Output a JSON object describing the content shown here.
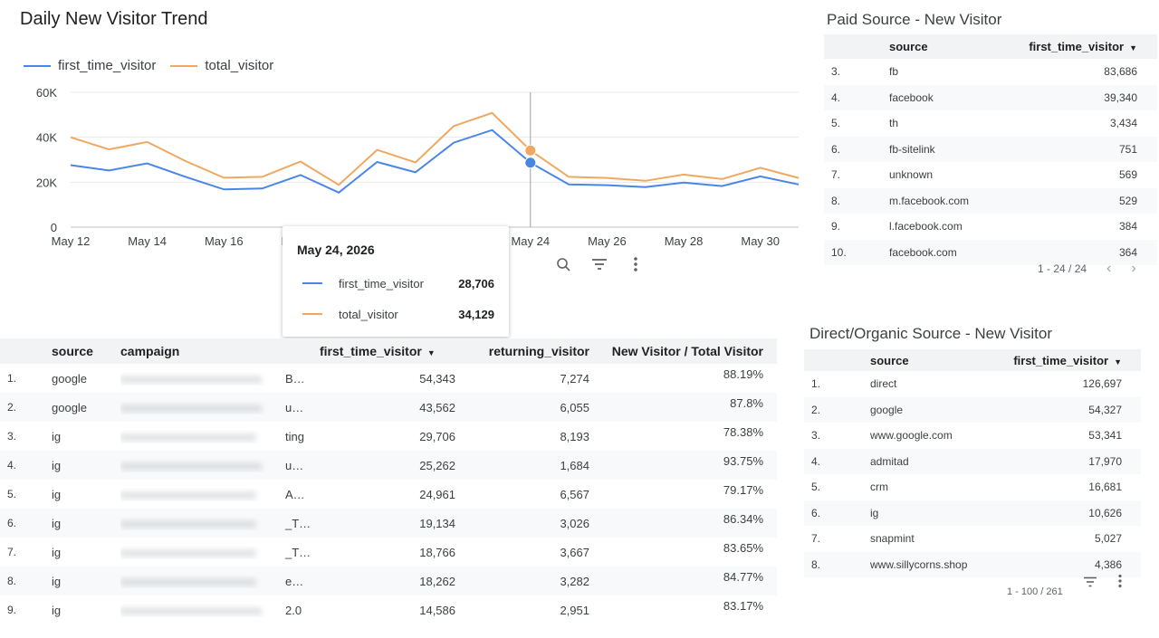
{
  "chart": {
    "title": "Daily New Visitor Trend",
    "legend": [
      {
        "name": "first_time_visitor",
        "color": "#4a86e8"
      },
      {
        "name": "total_visitor",
        "color": "#f0a860"
      }
    ],
    "tooltip": {
      "date": "May 24, 2026",
      "rows": [
        {
          "name": "first_time_visitor",
          "value": "28,706"
        },
        {
          "name": "total_visitor",
          "value": "34,129"
        }
      ]
    },
    "tools": [
      "zoom-icon",
      "filter-icon",
      "more-vert-icon"
    ]
  },
  "chart_data": {
    "type": "line",
    "title": "Daily New Visitor Trend",
    "x": [
      "May 12",
      "May 13",
      "May 14",
      "May 15",
      "May 16",
      "May 17",
      "May 18",
      "May 19",
      "May 20",
      "May 21",
      "May 22",
      "May 23",
      "May 24",
      "May 25",
      "May 26",
      "May 27",
      "May 28",
      "May 29",
      "May 30",
      "May 31"
    ],
    "x_tick_labels": [
      "May 12",
      "May 14",
      "May 16",
      "May 18",
      "May 20",
      "May 22",
      "May 24",
      "May 26",
      "May 28",
      "May 30"
    ],
    "y_tick_labels": [
      "0",
      "20K",
      "40K",
      "60K"
    ],
    "ylim": [
      0,
      60000
    ],
    "grid": true,
    "legend_position": "top-left",
    "highlight_index": 12,
    "series": [
      {
        "name": "first_time_visitor",
        "color": "#4a86e8",
        "values": [
          27600,
          25200,
          28400,
          22400,
          16800,
          17200,
          23200,
          15400,
          29000,
          24400,
          37600,
          43200,
          28706,
          19000,
          18700,
          17800,
          19800,
          18300,
          22600,
          19000
        ]
      },
      {
        "name": "total_visitor",
        "color": "#f0a860",
        "values": [
          40000,
          34600,
          37900,
          29400,
          22000,
          22400,
          29200,
          18800,
          34400,
          28800,
          45000,
          50800,
          34129,
          22400,
          21900,
          20600,
          23400,
          21400,
          26400,
          21900
        ]
      }
    ]
  },
  "paid": {
    "title": "Paid Source - New Visitor",
    "headers": [
      "source",
      "first_time_visitor"
    ],
    "rows": [
      {
        "idx": "3.",
        "source": "fb",
        "value": "83,686"
      },
      {
        "idx": "4.",
        "source": "facebook",
        "value": "39,340"
      },
      {
        "idx": "5.",
        "source": "th",
        "value": "3,434"
      },
      {
        "idx": "6.",
        "source": "fb-sitelink",
        "value": "751"
      },
      {
        "idx": "7.",
        "source": "unknown",
        "value": "569"
      },
      {
        "idx": "8.",
        "source": "m.facebook.com",
        "value": "529"
      },
      {
        "idx": "9.",
        "source": "l.facebook.com",
        "value": "384"
      },
      {
        "idx": "10.",
        "source": "facebook.com",
        "value": "364"
      }
    ],
    "pager": "1 - 24 / 24"
  },
  "direct": {
    "title": "Direct/Organic Source - New Visitor",
    "headers": [
      "source",
      "first_time_visitor"
    ],
    "rows": [
      {
        "idx": "1.",
        "source": "direct",
        "value": "126,697"
      },
      {
        "idx": "2.",
        "source": "google",
        "value": "54,327"
      },
      {
        "idx": "3.",
        "source": "www.google.com",
        "value": "53,341"
      },
      {
        "idx": "4.",
        "source": "admitad",
        "value": "17,970"
      },
      {
        "idx": "5.",
        "source": "crm",
        "value": "16,681"
      },
      {
        "idx": "6.",
        "source": "ig",
        "value": "10,626"
      },
      {
        "idx": "7.",
        "source": "snapmint",
        "value": "5,027"
      },
      {
        "idx": "8.",
        "source": "www.sillycorns.shop",
        "value": "4,386"
      }
    ],
    "pager": "1 - 100 / 261"
  },
  "campaigns": {
    "headers": [
      "source",
      "campaign",
      "first_time_visitor",
      "returning_visitor",
      "New Visitor / Total Visitor"
    ],
    "rows": [
      {
        "idx": "1.",
        "source": "google",
        "campaign": "xxxxxxxxxxxxxxxxxxxxxxxx",
        "campaign_tail": "B…",
        "ftv": "54,343",
        "rv": "7,274",
        "ratio": "88.19%"
      },
      {
        "idx": "2.",
        "source": "google",
        "campaign": "xxxxxxxxxxxxxxxxxxxxxxxx",
        "campaign_tail": "u…",
        "ftv": "43,562",
        "rv": "6,055",
        "ratio": "87.8%"
      },
      {
        "idx": "3.",
        "source": "ig",
        "campaign": "xxxxxxxxxxxxxxxxxxxxxxx",
        "campaign_tail": "ting",
        "ftv": "29,706",
        "rv": "8,193",
        "ratio": "78.38%"
      },
      {
        "idx": "4.",
        "source": "ig",
        "campaign": "xxxxxxxxxxxxxxxxxxxxxxxx",
        "campaign_tail": "u…",
        "ftv": "25,262",
        "rv": "1,684",
        "ratio": "93.75%"
      },
      {
        "idx": "5.",
        "source": "ig",
        "campaign": "xxxxxxxxxxxxxxxxxxxxxxx",
        "campaign_tail": "A…",
        "ftv": "24,961",
        "rv": "6,567",
        "ratio": "79.17%"
      },
      {
        "idx": "6.",
        "source": "ig",
        "campaign": "xxxxxxxxxxxxxxxxxxxxxxx",
        "campaign_tail": "_T…",
        "ftv": "19,134",
        "rv": "3,026",
        "ratio": "86.34%"
      },
      {
        "idx": "7.",
        "source": "ig",
        "campaign": "xxxxxxxxxxxxxxxxxxxxxxx",
        "campaign_tail": "_T…",
        "ftv": "18,766",
        "rv": "3,667",
        "ratio": "83.65%"
      },
      {
        "idx": "8.",
        "source": "ig",
        "campaign": "xxxxxxxxxxxxxxxxxxxxxxx",
        "campaign_tail": "e…",
        "ftv": "18,262",
        "rv": "3,282",
        "ratio": "84.77%"
      },
      {
        "idx": "9.",
        "source": "ig",
        "campaign": "xxxxxxxxxxxxxxxxxxxxxxxx",
        "campaign_tail": "2.0",
        "ftv": "14,586",
        "rv": "2,951",
        "ratio": "83.17%"
      }
    ]
  }
}
